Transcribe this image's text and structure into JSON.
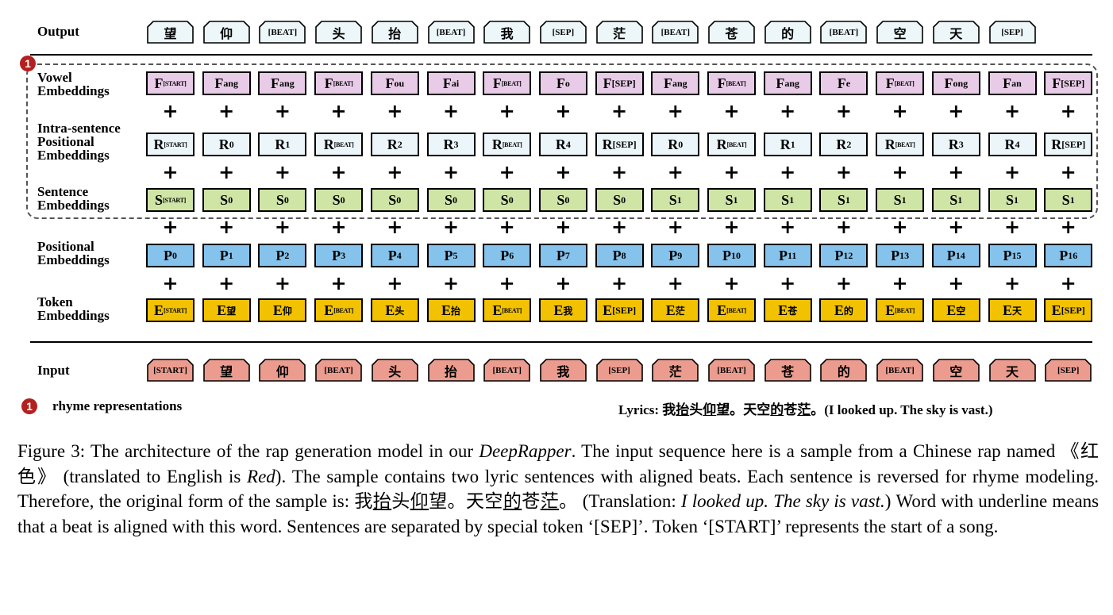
{
  "labels": {
    "output": "Output",
    "vowel": [
      "Vowel",
      "Embeddings"
    ],
    "intra": [
      "Intra-sentence",
      "Positional",
      "Embeddings"
    ],
    "sentence": [
      "Sentence",
      "Embeddings"
    ],
    "positional": [
      "Positional",
      "Embeddings"
    ],
    "token": [
      "Token",
      "Embeddings"
    ],
    "input": "Input"
  },
  "badge_number": "1",
  "legend": "rhyme representations",
  "lyrics_prefix": "Lyrics: ",
  "lyrics_chars": [
    {
      "c": "我",
      "u": false
    },
    {
      "c": "抬",
      "u": true
    },
    {
      "c": "头",
      "u": false
    },
    {
      "c": "仰",
      "u": true
    },
    {
      "c": "望",
      "u": false
    },
    {
      "c": "。",
      "u": false
    },
    {
      "c": "天",
      "u": false
    },
    {
      "c": "空",
      "u": false
    },
    {
      "c": "的",
      "u": true
    },
    {
      "c": "苍",
      "u": false
    },
    {
      "c": "茫",
      "u": true
    },
    {
      "c": "。",
      "u": false
    }
  ],
  "lyrics_translation": "(I looked up. The sky is vast.)",
  "output_tokens": [
    "望",
    "仰",
    "[BEAT]",
    "头",
    "抬",
    "[BEAT]",
    "我",
    "[SEP]",
    "茫",
    "[BEAT]",
    "苍",
    "的",
    "[BEAT]",
    "空",
    "天",
    "[SEP]"
  ],
  "input_tokens": [
    "[START]",
    "望",
    "仰",
    "[BEAT]",
    "头",
    "抬",
    "[BEAT]",
    "我",
    "[SEP]",
    "茫",
    "[BEAT]",
    "苍",
    "的",
    "[BEAT]",
    "空",
    "天",
    "[SEP]"
  ],
  "vowel_subs": [
    "[START]",
    "ang",
    "ang",
    "[BEAT]",
    "ou",
    "ai",
    "[BEAT]",
    "o",
    "[SEP]",
    "ang",
    "[BEAT]",
    "ang",
    "e",
    "[BEAT]",
    "ong",
    "an",
    "[SEP]"
  ],
  "intra_subs": [
    "[START]",
    "0",
    "1",
    "[BEAT]",
    "2",
    "3",
    "[BEAT]",
    "4",
    "[SEP]",
    "0",
    "[BEAT]",
    "1",
    "2",
    "[BEAT]",
    "3",
    "4",
    "[SEP]"
  ],
  "sentence_subs": [
    "[START]",
    "0",
    "0",
    "0",
    "0",
    "0",
    "0",
    "0",
    "0",
    "1",
    "1",
    "1",
    "1",
    "1",
    "1",
    "1",
    "1"
  ],
  "positional_subs": [
    "0",
    "1",
    "2",
    "3",
    "4",
    "5",
    "6",
    "7",
    "8",
    "9",
    "10",
    "11",
    "12",
    "13",
    "14",
    "15",
    "16"
  ],
  "token_subs": [
    "[START]",
    "望",
    "仰",
    "[BEAT]",
    "头",
    "抬",
    "[BEAT]",
    "我",
    "[SEP]",
    "茫",
    "[BEAT]",
    "苍",
    "的",
    "[BEAT]",
    "空",
    "天",
    "[SEP]"
  ],
  "letters": {
    "vowel": "F",
    "intra": "R",
    "sentence": "S",
    "positional": "P",
    "token": "E"
  },
  "colors": {
    "vowel": "#e8cbe6",
    "intra": "#ecf6fa",
    "sentence": "#cfe5a6",
    "positional": "#86c3ec",
    "token": "#f2c200",
    "output_fill": "#edf6f8",
    "input_fill": "#ec9c8e",
    "badge": "#b32020"
  },
  "caption": {
    "p1": "Figure 3: The architecture of the rap generation model in our ",
    "model": "DeepRapper",
    "p2": ". The input sequence here is a sample from a Chinese rap named 《红色》 (translated to English is ",
    "red": "Red",
    "p3": "). The sample contains two lyric sentences with aligned beats. Each sentence is reversed for rhyme modeling. Therefore, the original form of the sample is: ",
    "p4": " (Translation: ",
    "trans": "I looked up. The sky is vast.",
    "p5": ") Word with underline means that a beat is aligned with this word. Sentences are separated by special token ‘[SEP]’. Token ‘[START]’ represents the start of a song."
  }
}
